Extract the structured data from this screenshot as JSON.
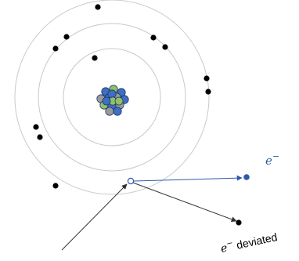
{
  "labels": {
    "electron_symbol": "e",
    "electron_superscript": "−",
    "deviated_symbol": "e",
    "deviated_superscript": "−",
    "deviated_text": "deviated"
  },
  "colors": {
    "orbit": "#c9c9c9",
    "electron": "#000000",
    "ejected_electron": "#2f5aa8",
    "ejected_path": "#2f5aa8",
    "incident_path": "#333333",
    "nucleon_blue": "#3f6fc4",
    "nucleon_green": "#8fc266",
    "nucleon_gray": "#9a9a9a",
    "nucleon_outline": "#1f3864"
  },
  "icons": {
    "vacancy": "hollow-circle",
    "ejected_electron": "filled-circle",
    "nucleus": "nucleon-cluster"
  }
}
